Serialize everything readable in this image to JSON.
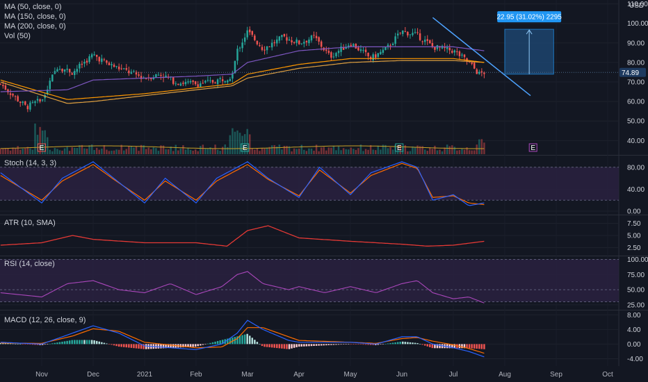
{
  "currency": "USD",
  "last_price_label": "74.89",
  "measure": {
    "label": "22.95 (31.02%) 2295",
    "from_price": 74.0,
    "to_price": 97.0,
    "start_month_offset": 9.0,
    "end_month_offset": 9.95
  },
  "earnings_marker": "E",
  "x_axis": {
    "labels": [
      "Nov",
      "Dec",
      "2021",
      "Feb",
      "Mar",
      "Apr",
      "May",
      "Jun",
      "Jul",
      "Aug",
      "Sep",
      "Oct"
    ],
    "month_offsets": [
      0,
      1,
      2,
      3,
      4,
      5,
      6,
      7,
      8,
      9,
      10,
      11
    ],
    "data_start_offset": -0.8,
    "data_end_offset": 8.6
  },
  "panes": {
    "price": {
      "indicators": [
        "MA (50, close, 0)",
        "MA (150, close, 0)",
        "MA (200, close, 0)",
        "Vol (50)"
      ],
      "y_ticks": [
        "110.00",
        "100.00",
        "90.00",
        "80.00",
        "70.00",
        "60.00",
        "50.00",
        "40.00"
      ],
      "y_tick_values": [
        110,
        100,
        90,
        80,
        70,
        60,
        50,
        40
      ],
      "ylim": [
        33,
        112
      ]
    },
    "stoch": {
      "title": "Stoch (14, 3, 3)",
      "y_ticks": [
        "80.00",
        "40.00",
        "0.00"
      ],
      "y_tick_values": [
        80,
        40,
        0
      ],
      "ylim": [
        -5,
        100
      ],
      "band": [
        20,
        80
      ]
    },
    "atr": {
      "title": "ATR (10, SMA)",
      "y_ticks": [
        "7.50",
        "5.00",
        "2.50"
      ],
      "y_tick_values": [
        7.5,
        5,
        2.5
      ],
      "ylim": [
        1,
        9
      ]
    },
    "rsi": {
      "title": "RSI (14, close)",
      "y_ticks": [
        "100.00",
        "75.00",
        "50.00",
        "25.00"
      ],
      "y_tick_values": [
        100,
        75,
        50,
        25
      ],
      "ylim": [
        18,
        104
      ],
      "band": [
        30,
        100
      ]
    },
    "macd": {
      "title": "MACD (12, 26, close, 9)",
      "y_ticks": [
        "8.00",
        "4.00",
        "0.00",
        "-4.00"
      ],
      "y_tick_values": [
        8,
        4,
        0,
        -4
      ],
      "ylim": [
        -6,
        9
      ]
    }
  },
  "colors": {
    "background": "#131722",
    "up": "#26a69a",
    "down": "#ef5350",
    "ma50": "#7e57c2",
    "ma150": "#ff9800",
    "ma200": "#e0a040",
    "vol_ma": "#c9a227",
    "stoch_k": "#2962ff",
    "stoch_d": "#ff6d00",
    "osc_band": "#2a2140",
    "atr": "#e53935",
    "rsi": "#ab47bc",
    "macd": "#2962ff",
    "signal": "#ff6d00",
    "trendline": "#4da3ff",
    "measure_fill": "#1e4a78",
    "measure_tag": "#2196f3",
    "price_tag": "#1e3a5f",
    "earnings_past": "#ef5350",
    "earnings_mid": "#26a69a",
    "earnings_future": "#ab47bc"
  },
  "chart_data": [
    {
      "type": "candlestick",
      "title": "Price",
      "key_points_date_offset": [
        -0.8,
        -0.3,
        0.0,
        0.3,
        0.6,
        1.0,
        1.3,
        1.6,
        2.0,
        2.3,
        2.6,
        3.0,
        3.3,
        3.7,
        3.8,
        4.0,
        4.3,
        4.7,
        5.0,
        5.3,
        5.6,
        6.0,
        6.4,
        6.7,
        7.0,
        7.3,
        7.6,
        8.0,
        8.3,
        8.5,
        8.6
      ],
      "key_points_close": [
        69,
        57,
        61,
        78,
        75,
        84,
        79,
        76,
        72,
        74,
        70,
        69,
        70,
        73,
        86,
        96,
        87,
        93,
        90,
        93,
        83,
        90,
        82,
        87,
        96,
        94,
        88,
        86,
        80,
        74,
        74.89
      ],
      "ma50_offset": [
        -0.8,
        0.5,
        1.0,
        2.0,
        3.0,
        3.7,
        4.0,
        5.0,
        6.0,
        7.0,
        7.5,
        8.0,
        8.6
      ],
      "ma50": [
        65,
        66,
        71,
        72,
        73,
        74,
        80,
        86,
        88,
        88,
        88,
        88,
        86
      ],
      "ma150_offset": [
        -0.8,
        0.5,
        1.0,
        2.0,
        3.0,
        3.7,
        4.0,
        5.0,
        6.0,
        7.0,
        8.0,
        8.6
      ],
      "ma150": [
        71,
        61,
        62,
        64,
        67,
        69,
        74,
        79,
        82,
        82,
        82,
        80
      ],
      "ma200_offset": [
        -0.8,
        0.5,
        1.0,
        2.0,
        3.0,
        3.7,
        4.0,
        5.0,
        6.0,
        7.0,
        8.0,
        8.6
      ],
      "ma200": [
        70,
        59,
        60,
        63,
        66,
        68,
        72,
        77,
        80,
        81,
        81,
        80
      ],
      "trendline_offset": [
        7.6,
        9.5
      ],
      "trendline": [
        103,
        63
      ],
      "volume_note": "relative volume bars with earnings spikes near Nov, Feb and Aug"
    },
    {
      "type": "line",
      "title": "Stoch (14, 3, 3)",
      "x_offset": [
        -0.8,
        0.0,
        0.4,
        1.0,
        1.4,
        2.0,
        2.4,
        3.0,
        3.4,
        4.0,
        4.4,
        5.0,
        5.4,
        6.0,
        6.4,
        7.0,
        7.3,
        7.6,
        8.0,
        8.3,
        8.6
      ],
      "k": [
        70,
        15,
        60,
        90,
        60,
        15,
        60,
        15,
        60,
        90,
        60,
        25,
        80,
        30,
        70,
        90,
        80,
        20,
        30,
        10,
        15
      ],
      "d": [
        65,
        20,
        55,
        85,
        58,
        20,
        55,
        20,
        55,
        85,
        58,
        28,
        75,
        33,
        65,
        87,
        78,
        25,
        28,
        15,
        12
      ]
    },
    {
      "type": "line",
      "title": "ATR (10, SMA)",
      "x_offset": [
        -0.8,
        0.0,
        0.6,
        1.0,
        2.0,
        3.0,
        3.6,
        4.0,
        4.4,
        5.0,
        6.0,
        7.0,
        7.5,
        8.0,
        8.6
      ],
      "values": [
        3.0,
        3.5,
        5.0,
        4.2,
        3.5,
        3.5,
        2.8,
        6.0,
        7.0,
        4.5,
        3.8,
        3.2,
        2.8,
        3.0,
        3.8
      ]
    },
    {
      "type": "line",
      "title": "RSI (14, close)",
      "x_offset": [
        -0.8,
        0.0,
        0.5,
        1.0,
        1.5,
        2.0,
        2.5,
        3.0,
        3.5,
        3.8,
        4.0,
        4.3,
        4.8,
        5.0,
        5.5,
        6.0,
        6.5,
        7.0,
        7.3,
        7.6,
        8.0,
        8.3,
        8.6
      ],
      "values": [
        45,
        38,
        60,
        65,
        50,
        45,
        60,
        42,
        55,
        75,
        80,
        60,
        50,
        55,
        45,
        55,
        45,
        60,
        65,
        45,
        35,
        38,
        28
      ]
    },
    {
      "type": "line",
      "title": "MACD (12, 26, close, 9)",
      "x_offset": [
        -0.8,
        0.0,
        0.6,
        1.0,
        1.5,
        2.0,
        3.0,
        3.5,
        3.8,
        4.0,
        4.3,
        4.8,
        5.0,
        6.0,
        6.5,
        7.0,
        7.3,
        7.6,
        8.0,
        8.3,
        8.6
      ],
      "macd": [
        0.5,
        0.0,
        3.0,
        5.0,
        3.0,
        -0.5,
        -1.5,
        0.0,
        3.0,
        6.5,
        4.0,
        1.0,
        0.5,
        0.5,
        0.0,
        2.0,
        2.0,
        0.0,
        -1.0,
        -2.0,
        -3.5
      ],
      "signal": [
        0.3,
        0.2,
        2.2,
        4.2,
        3.5,
        0.5,
        -1.0,
        -0.8,
        1.5,
        4.5,
        4.5,
        2.0,
        1.0,
        0.5,
        0.2,
        1.5,
        1.8,
        0.8,
        -0.2,
        -1.2,
        -2.5
      ]
    }
  ]
}
